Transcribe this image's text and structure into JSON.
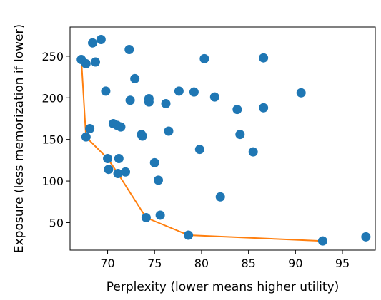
{
  "chart_data": {
    "type": "scatter",
    "title": "",
    "xlabel": "Perplexity (lower means higher utility)",
    "ylabel": "Exposure (less memorization if lower)",
    "xlim": [
      66.0,
      98.5
    ],
    "ylim": [
      17,
      285
    ],
    "xticks": [
      70,
      75,
      80,
      85,
      90,
      95
    ],
    "yticks": [
      50,
      100,
      150,
      200,
      250
    ],
    "grid": false,
    "legend": "none",
    "colors": {
      "points": "#1f77b4",
      "frontier": "#ff7f0e"
    },
    "series": [
      {
        "type": "scatter",
        "points": [
          [
            67.2,
            246
          ],
          [
            67.7,
            241
          ],
          [
            68.4,
            266
          ],
          [
            68.7,
            243
          ],
          [
            69.3,
            270
          ],
          [
            69.8,
            208
          ],
          [
            72.3,
            258
          ],
          [
            72.9,
            223
          ],
          [
            72.4,
            197
          ],
          [
            74.4,
            199
          ],
          [
            74.4,
            195
          ],
          [
            76.2,
            193
          ],
          [
            77.6,
            208
          ],
          [
            79.2,
            207
          ],
          [
            80.3,
            247
          ],
          [
            81.4,
            201
          ],
          [
            83.8,
            186
          ],
          [
            86.6,
            248
          ],
          [
            86.6,
            188
          ],
          [
            90.6,
            206
          ],
          [
            67.7,
            153
          ],
          [
            68.1,
            163
          ],
          [
            70.6,
            169
          ],
          [
            71.0,
            167
          ],
          [
            71.4,
            165
          ],
          [
            73.6,
            156
          ],
          [
            73.7,
            154
          ],
          [
            76.5,
            160
          ],
          [
            79.8,
            138
          ],
          [
            84.1,
            156
          ],
          [
            85.5,
            135
          ],
          [
            70.0,
            127
          ],
          [
            71.2,
            127
          ],
          [
            75.0,
            122
          ],
          [
            70.1,
            114
          ],
          [
            71.1,
            109
          ],
          [
            71.9,
            111
          ],
          [
            75.4,
            101
          ],
          [
            82.0,
            81
          ],
          [
            74.1,
            56
          ],
          [
            75.6,
            59
          ],
          [
            78.6,
            35
          ],
          [
            92.9,
            28
          ],
          [
            97.5,
            33
          ]
        ]
      },
      {
        "type": "line",
        "points": [
          [
            67.2,
            246
          ],
          [
            67.7,
            153
          ],
          [
            70.0,
            127
          ],
          [
            71.1,
            109
          ],
          [
            74.1,
            56
          ],
          [
            78.6,
            35
          ],
          [
            92.9,
            28
          ]
        ]
      }
    ]
  }
}
